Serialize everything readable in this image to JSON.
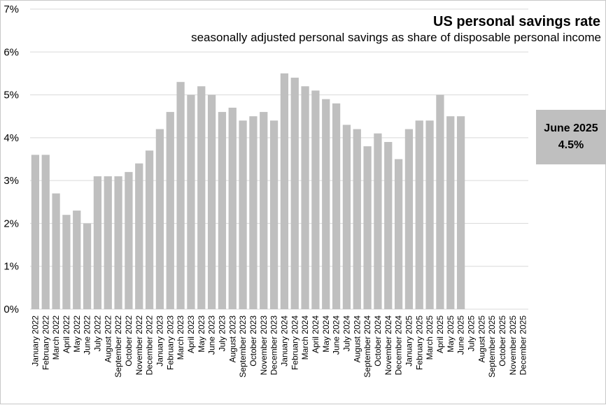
{
  "chart_data": {
    "type": "bar",
    "title": "US personal savings rate",
    "subtitle": "seasonally adjusted personal savings as share of disposable personal income",
    "ylim": [
      0,
      7
    ],
    "yticks": [
      "0%",
      "1%",
      "2%",
      "3%",
      "4%",
      "5%",
      "6%",
      "7%"
    ],
    "grid": true,
    "bar_color": "#bfbfbf",
    "categories": [
      "January 2022",
      "February 2022",
      "March 2022",
      "April 2022",
      "May 2022",
      "June 2022",
      "July 2022",
      "August 2022",
      "September 2022",
      "October 2022",
      "November 2022",
      "December 2022",
      "January 2023",
      "February 2023",
      "March 2023",
      "April 2023",
      "May 2023",
      "June 2023",
      "July 2023",
      "August 2023",
      "September 2023",
      "October 2023",
      "November 2023",
      "December 2023",
      "January 2024",
      "February 2024",
      "March 2024",
      "April 2024",
      "May 2024",
      "June 2024",
      "July 2024",
      "August 2024",
      "September 2024",
      "October 2024",
      "November 2024",
      "December 2024",
      "January 2025",
      "February 2025",
      "March 2025",
      "April 2025",
      "May 2025",
      "June 2025",
      "July 2025",
      "August 2025",
      "September 2025",
      "October 2025",
      "November 2025",
      "December 2025"
    ],
    "values": [
      3.6,
      3.6,
      2.7,
      2.2,
      2.3,
      2.0,
      3.1,
      3.1,
      3.1,
      3.2,
      3.4,
      3.7,
      4.2,
      4.6,
      5.3,
      5.0,
      5.2,
      5.0,
      4.6,
      4.7,
      4.4,
      4.5,
      4.6,
      4.4,
      5.5,
      5.4,
      5.2,
      5.1,
      4.9,
      4.8,
      4.3,
      4.2,
      3.8,
      4.1,
      3.9,
      3.5,
      4.2,
      4.4,
      4.4,
      5.0,
      4.5,
      4.5,
      null,
      null,
      null,
      null,
      null,
      null
    ]
  },
  "callout": {
    "line1": "June 2025",
    "line2": "4.5%"
  }
}
